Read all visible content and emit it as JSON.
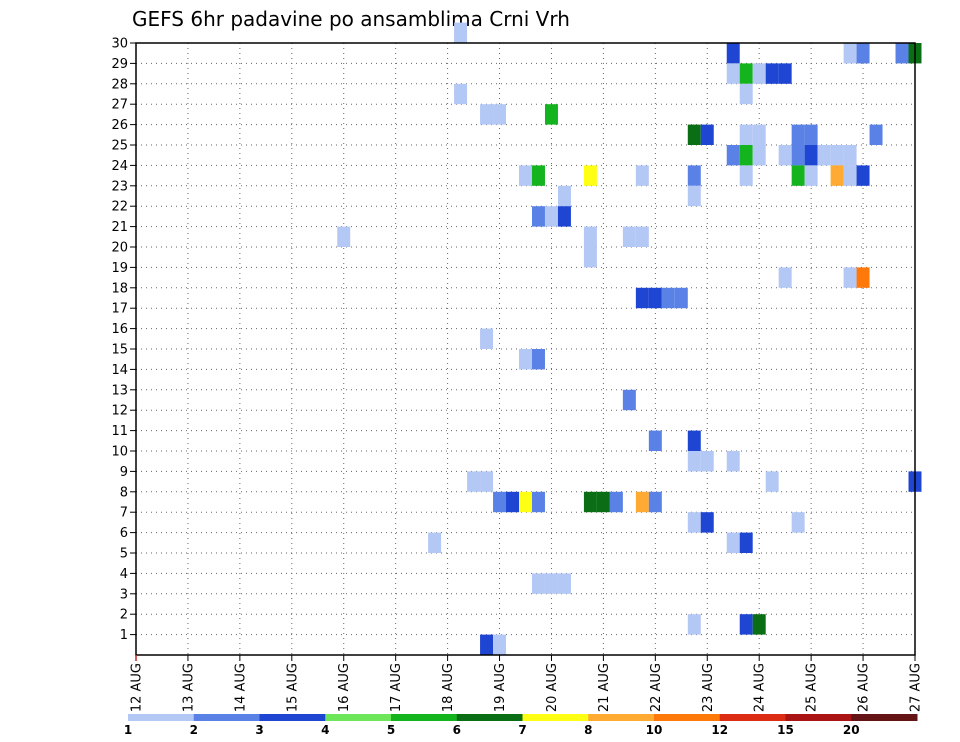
{
  "chart_data": {
    "type": "heatmap",
    "title": "GEFS 6hr padavine po ansamblima Crni Vrh",
    "x_tick_labels": [
      "12 AUG",
      "13 AUG",
      "14 AUG",
      "15 AUG",
      "16 AUG",
      "17 AUG",
      "18 AUG",
      "19 AUG",
      "20 AUG",
      "21 AUG",
      "22 AUG",
      "23 AUG",
      "24 AUG",
      "25 AUG",
      "26 AUG",
      "27 AUG"
    ],
    "y_tick_labels": [
      "1",
      "2",
      "3",
      "4",
      "5",
      "6",
      "7",
      "8",
      "9",
      "10",
      "11",
      "12",
      "13",
      "14",
      "15",
      "16",
      "17",
      "18",
      "19",
      "20",
      "21",
      "22",
      "23",
      "24",
      "25",
      "26",
      "27",
      "28",
      "29",
      "30"
    ],
    "x_range_days": [
      12,
      27
    ],
    "y_range_members": [
      0,
      30
    ],
    "time_step_hours": 6,
    "grid": "dotted",
    "colorbar": {
      "labels": [
        "1",
        "2",
        "3",
        "4",
        "5",
        "6",
        "7",
        "8",
        "10",
        "12",
        "15",
        "20"
      ],
      "colors": [
        "#b4c8f5",
        "#5a82e6",
        "#1e46d2",
        "#6ee65a",
        "#14b41e",
        "#0a6e14",
        "#ffff14",
        "#ffaa32",
        "#ff780a",
        "#dc2d14",
        "#aa1414",
        "#641414"
      ]
    },
    "cells": [
      {
        "t": "18 AUG 06",
        "m": 30,
        "v": 1
      },
      {
        "t": "23 AUG 12",
        "m": 29,
        "v": 3
      },
      {
        "t": "25 AUG 18",
        "m": 29,
        "v": 1
      },
      {
        "t": "26 AUG 00",
        "m": 29,
        "v": 2
      },
      {
        "t": "26 AUG 18",
        "m": 29,
        "v": 2
      },
      {
        "t": "27 AUG 00",
        "m": 29,
        "v": 6
      },
      {
        "t": "23 AUG 12",
        "m": 28,
        "v": 1
      },
      {
        "t": "23 AUG 18",
        "m": 28,
        "v": 5
      },
      {
        "t": "24 AUG 00",
        "m": 28,
        "v": 1
      },
      {
        "t": "24 AUG 06",
        "m": 28,
        "v": 3
      },
      {
        "t": "24 AUG 12",
        "m": 28,
        "v": 3
      },
      {
        "t": "18 AUG 06",
        "m": 27,
        "v": 1
      },
      {
        "t": "23 AUG 18",
        "m": 27,
        "v": 1
      },
      {
        "t": "18 AUG 18",
        "m": 26,
        "v": 1
      },
      {
        "t": "19 AUG 00",
        "m": 26,
        "v": 1
      },
      {
        "t": "20 AUG 00",
        "m": 26,
        "v": 5
      },
      {
        "t": "22 AUG 18",
        "m": 25,
        "v": 6
      },
      {
        "t": "23 AUG 00",
        "m": 25,
        "v": 3
      },
      {
        "t": "23 AUG 18",
        "m": 25,
        "v": 1
      },
      {
        "t": "24 AUG 00",
        "m": 25,
        "v": 1
      },
      {
        "t": "24 AUG 18",
        "m": 25,
        "v": 2
      },
      {
        "t": "25 AUG 00",
        "m": 25,
        "v": 2
      },
      {
        "t": "26 AUG 06",
        "m": 25,
        "v": 2
      },
      {
        "t": "23 AUG 12",
        "m": 24,
        "v": 2
      },
      {
        "t": "23 AUG 18",
        "m": 24,
        "v": 5
      },
      {
        "t": "24 AUG 00",
        "m": 24,
        "v": 1
      },
      {
        "t": "24 AUG 12",
        "m": 24,
        "v": 1
      },
      {
        "t": "24 AUG 18",
        "m": 24,
        "v": 2
      },
      {
        "t": "25 AUG 00",
        "m": 24,
        "v": 3
      },
      {
        "t": "25 AUG 06",
        "m": 24,
        "v": 1
      },
      {
        "t": "25 AUG 12",
        "m": 24,
        "v": 1
      },
      {
        "t": "25 AUG 18",
        "m": 24,
        "v": 1
      },
      {
        "t": "19 AUG 12",
        "m": 23,
        "v": 1
      },
      {
        "t": "19 AUG 18",
        "m": 23,
        "v": 5
      },
      {
        "t": "20 AUG 18",
        "m": 23,
        "v": 7
      },
      {
        "t": "21 AUG 18",
        "m": 23,
        "v": 1
      },
      {
        "t": "22 AUG 18",
        "m": 23,
        "v": 2
      },
      {
        "t": "23 AUG 18",
        "m": 23,
        "v": 1
      },
      {
        "t": "24 AUG 18",
        "m": 23,
        "v": 5
      },
      {
        "t": "25 AUG 00",
        "m": 23,
        "v": 1
      },
      {
        "t": "25 AUG 12",
        "m": 23,
        "v": 8
      },
      {
        "t": "25 AUG 18",
        "m": 23,
        "v": 1
      },
      {
        "t": "26 AUG 00",
        "m": 23,
        "v": 3
      },
      {
        "t": "20 AUG 06",
        "m": 22,
        "v": 1
      },
      {
        "t": "22 AUG 18",
        "m": 22,
        "v": 1
      },
      {
        "t": "19 AUG 18",
        "m": 21,
        "v": 2
      },
      {
        "t": "20 AUG 00",
        "m": 21,
        "v": 1
      },
      {
        "t": "20 AUG 06",
        "m": 21,
        "v": 3
      },
      {
        "t": "16 AUG 00",
        "m": 20,
        "v": 1
      },
      {
        "t": "20 AUG 18",
        "m": 20,
        "v": 1
      },
      {
        "t": "21 AUG 12",
        "m": 20,
        "v": 1
      },
      {
        "t": "21 AUG 18",
        "m": 20,
        "v": 1
      },
      {
        "t": "20 AUG 18",
        "m": 19,
        "v": 1
      },
      {
        "t": "24 AUG 12",
        "m": 18,
        "v": 1
      },
      {
        "t": "25 AUG 18",
        "m": 18,
        "v": 1
      },
      {
        "t": "26 AUG 00",
        "m": 18,
        "v": 9
      },
      {
        "t": "21 AUG 18",
        "m": 17,
        "v": 3
      },
      {
        "t": "22 AUG 00",
        "m": 17,
        "v": 3
      },
      {
        "t": "22 AUG 06",
        "m": 17,
        "v": 2
      },
      {
        "t": "22 AUG 12",
        "m": 17,
        "v": 2
      },
      {
        "t": "18 AUG 18",
        "m": 15,
        "v": 1
      },
      {
        "t": "19 AUG 12",
        "m": 14,
        "v": 1
      },
      {
        "t": "19 AUG 18",
        "m": 14,
        "v": 2
      },
      {
        "t": "21 AUG 12",
        "m": 12,
        "v": 2
      },
      {
        "t": "22 AUG 00",
        "m": 10,
        "v": 2
      },
      {
        "t": "22 AUG 18",
        "m": 10,
        "v": 3
      },
      {
        "t": "22 AUG 18",
        "m": 9,
        "v": 1
      },
      {
        "t": "23 AUG 00",
        "m": 9,
        "v": 1
      },
      {
        "t": "23 AUG 12",
        "m": 9,
        "v": 1
      },
      {
        "t": "18 AUG 12",
        "m": 8,
        "v": 1
      },
      {
        "t": "18 AUG 18",
        "m": 8,
        "v": 1
      },
      {
        "t": "24 AUG 06",
        "m": 8,
        "v": 1
      },
      {
        "t": "27 AUG 00",
        "m": 8,
        "v": 3
      },
      {
        "t": "19 AUG 00",
        "m": 7,
        "v": 2
      },
      {
        "t": "19 AUG 06",
        "m": 7,
        "v": 3
      },
      {
        "t": "19 AUG 12",
        "m": 7,
        "v": 7
      },
      {
        "t": "19 AUG 18",
        "m": 7,
        "v": 2
      },
      {
        "t": "20 AUG 18",
        "m": 7,
        "v": 6
      },
      {
        "t": "21 AUG 00",
        "m": 7,
        "v": 6
      },
      {
        "t": "21 AUG 06",
        "m": 7,
        "v": 2
      },
      {
        "t": "21 AUG 18",
        "m": 7,
        "v": 8
      },
      {
        "t": "22 AUG 00",
        "m": 7,
        "v": 2
      },
      {
        "t": "22 AUG 18",
        "m": 6,
        "v": 1
      },
      {
        "t": "23 AUG 00",
        "m": 6,
        "v": 3
      },
      {
        "t": "24 AUG 18",
        "m": 6,
        "v": 1
      },
      {
        "t": "17 AUG 18",
        "m": 5,
        "v": 1
      },
      {
        "t": "23 AUG 12",
        "m": 5,
        "v": 1
      },
      {
        "t": "23 AUG 18",
        "m": 5,
        "v": 3
      },
      {
        "t": "19 AUG 18",
        "m": 3,
        "v": 1
      },
      {
        "t": "20 AUG 00",
        "m": 3,
        "v": 1
      },
      {
        "t": "20 AUG 06",
        "m": 3,
        "v": 1
      },
      {
        "t": "22 AUG 18",
        "m": 1,
        "v": 1
      },
      {
        "t": "23 AUG 18",
        "m": 1,
        "v": 3
      },
      {
        "t": "24 AUG 00",
        "m": 1,
        "v": 6
      },
      {
        "t": "18 AUG 18",
        "m": 0,
        "v": 3
      },
      {
        "t": "19 AUG 00",
        "m": 0,
        "v": 1
      }
    ]
  }
}
